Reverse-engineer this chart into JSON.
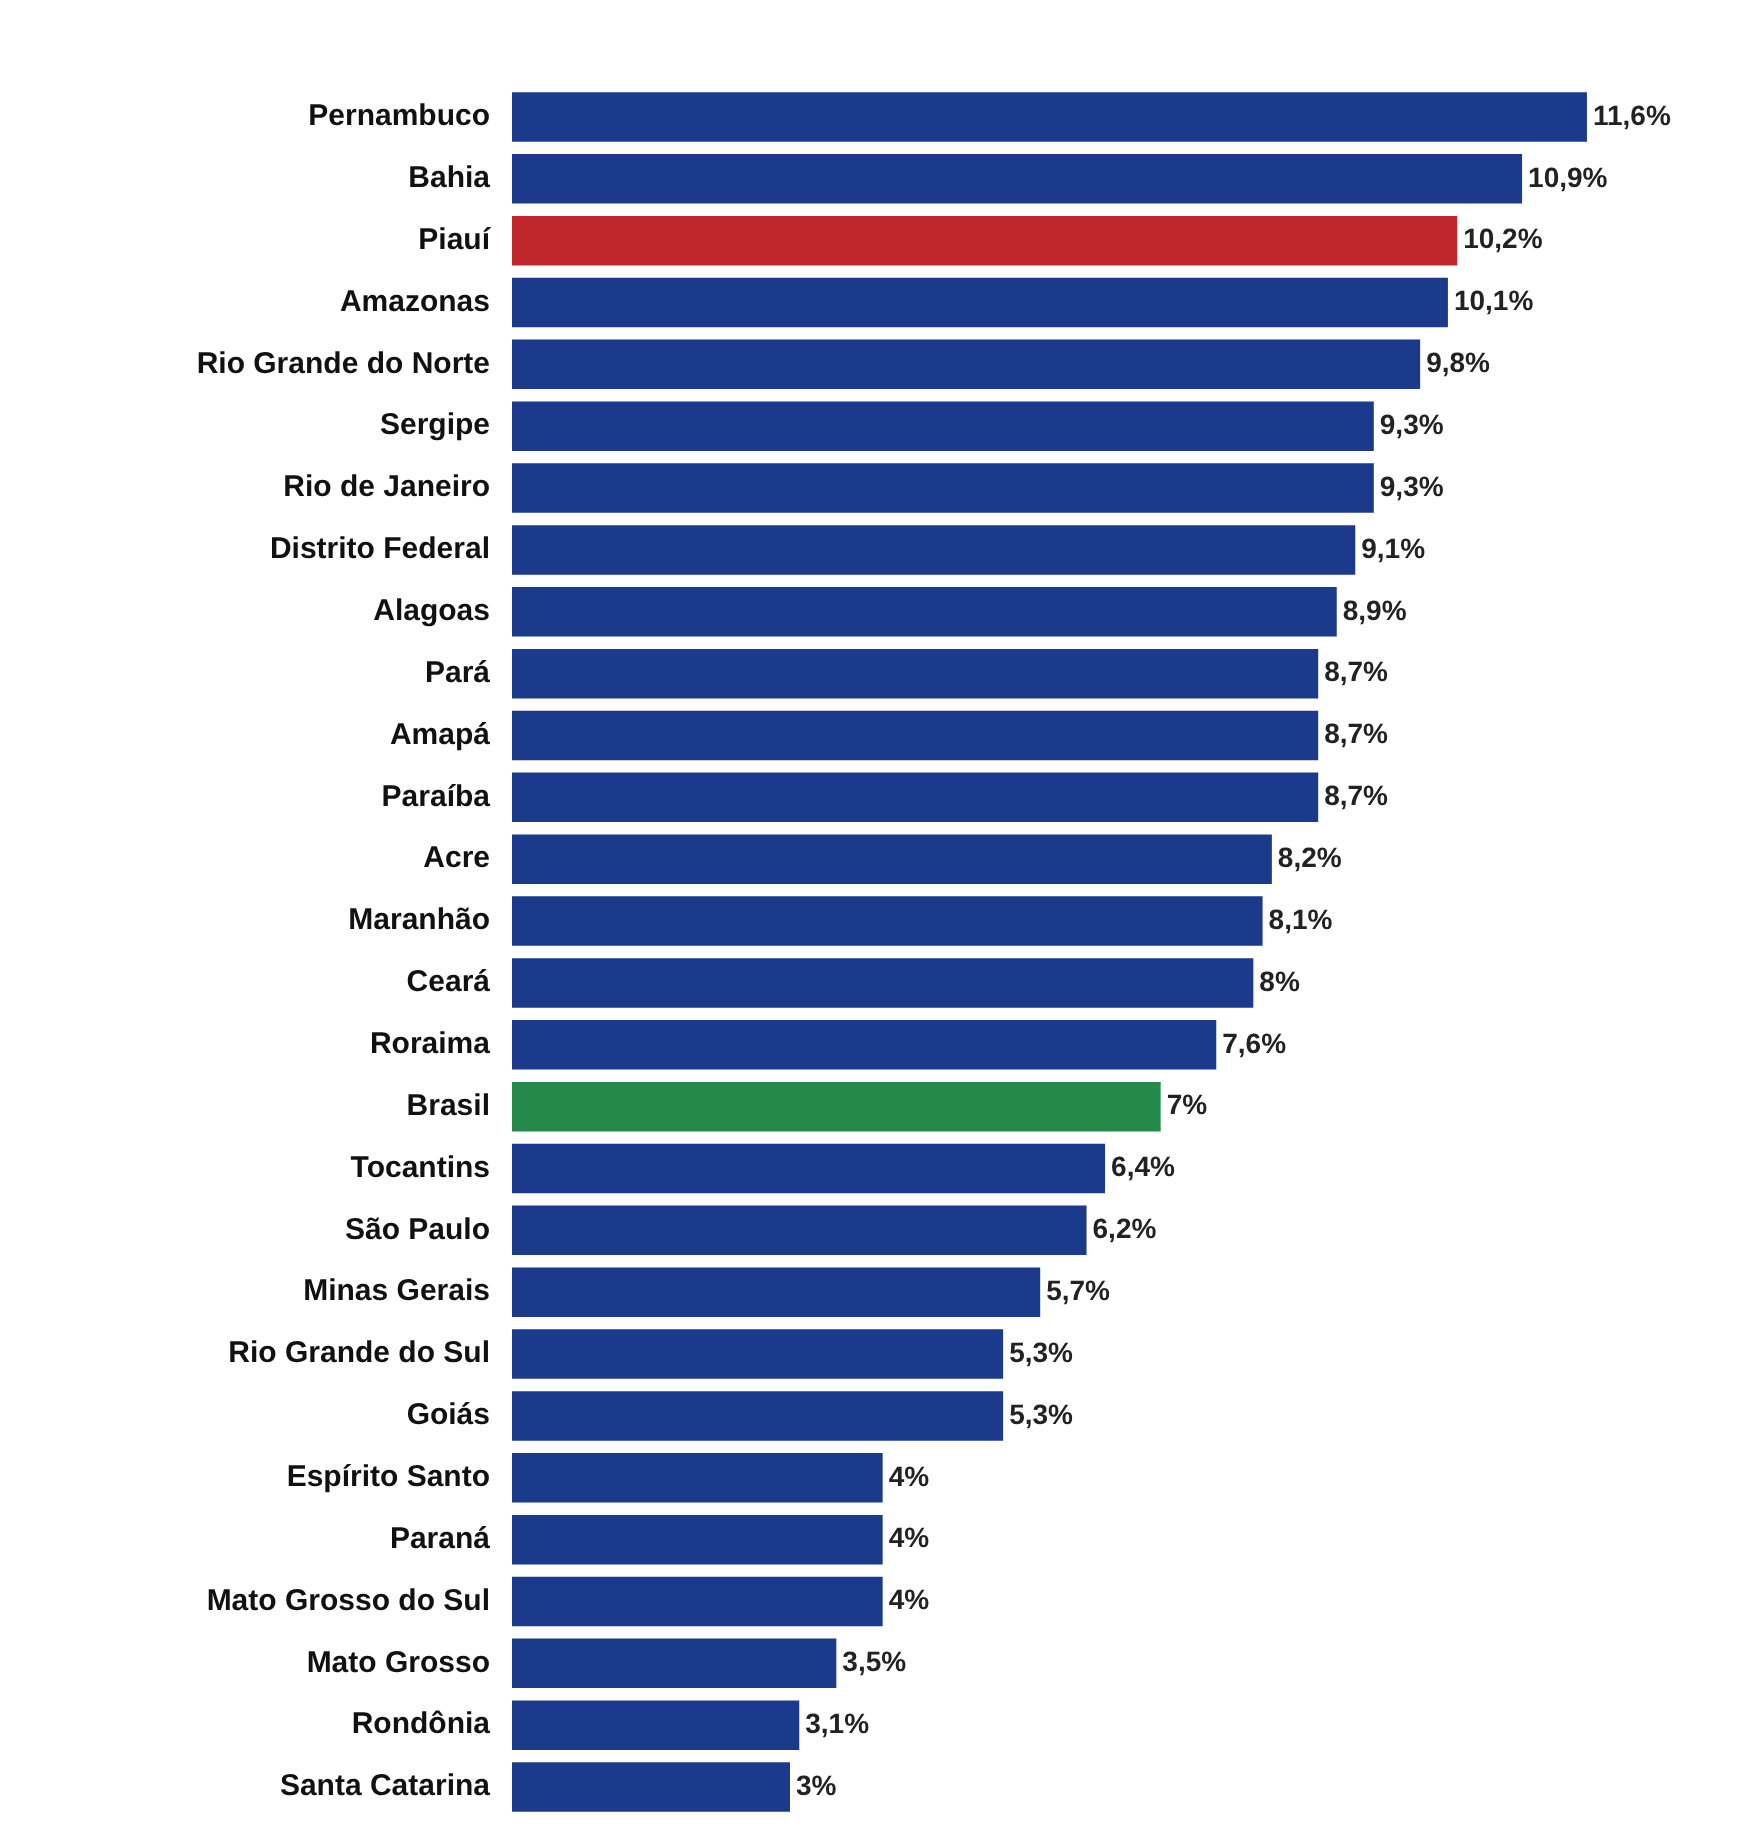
{
  "chart_data": {
    "type": "bar",
    "orientation": "horizontal",
    "categories": [
      "Pernambuco",
      "Bahia",
      "Piauí",
      "Amazonas",
      "Rio Grande do Norte",
      "Sergipe",
      "Rio de Janeiro",
      "Distrito Federal",
      "Alagoas",
      "Pará",
      "Amapá",
      "Paraíba",
      "Acre",
      "Maranhão",
      "Ceará",
      "Roraima",
      "Brasil",
      "Tocantins",
      "São Paulo",
      "Minas Gerais",
      "Rio Grande do Sul",
      "Goiás",
      "Espírito Santo",
      "Paraná",
      "Mato Grosso do Sul",
      "Mato Grosso",
      "Rondônia",
      "Santa Catarina"
    ],
    "values": [
      11.6,
      10.9,
      10.2,
      10.1,
      9.8,
      9.3,
      9.3,
      9.1,
      8.9,
      8.7,
      8.7,
      8.7,
      8.2,
      8.1,
      8,
      7.6,
      7,
      6.4,
      6.2,
      5.7,
      5.3,
      5.3,
      4,
      4,
      4,
      3.5,
      3.1,
      3
    ],
    "value_labels": [
      "11,6%",
      "10,9%",
      "10,2%",
      "10,1%",
      "9,8%",
      "9,3%",
      "9,3%",
      "9,1%",
      "8,9%",
      "8,7%",
      "8,7%",
      "8,7%",
      "8,2%",
      "8,1%",
      "8%",
      "7,6%",
      "7%",
      "6,4%",
      "6,2%",
      "5,7%",
      "5,3%",
      "5,3%",
      "4%",
      "4%",
      "4%",
      "3,5%",
      "3,1%",
      "3%"
    ],
    "colors": [
      "#1c3a8c",
      "#1c3a8c",
      "#c0272d",
      "#1c3a8c",
      "#1c3a8c",
      "#1c3a8c",
      "#1c3a8c",
      "#1c3a8c",
      "#1c3a8c",
      "#1c3a8c",
      "#1c3a8c",
      "#1c3a8c",
      "#1c3a8c",
      "#1c3a8c",
      "#1c3a8c",
      "#1c3a8c",
      "#238a4c",
      "#1c3a8c",
      "#1c3a8c",
      "#1c3a8c",
      "#1c3a8c",
      "#1c3a8c",
      "#1c3a8c",
      "#1c3a8c",
      "#1c3a8c",
      "#1c3a8c",
      "#1c3a8c",
      "#1c3a8c"
    ],
    "grid": false,
    "legend": false
  }
}
